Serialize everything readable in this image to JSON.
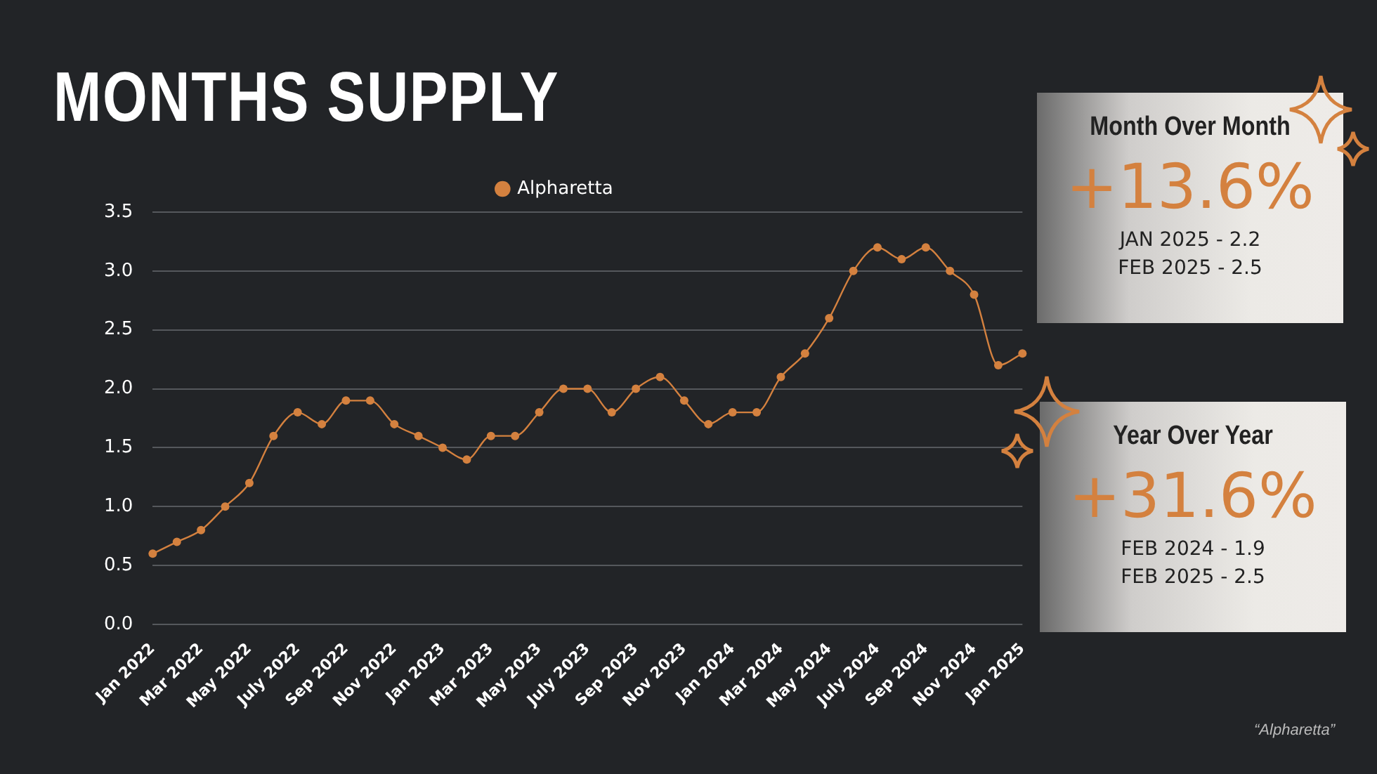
{
  "chart_data": [
    {
      "type": "line",
      "title": "MONTHS SUPPLY",
      "categories": [
        "Jan 2022",
        null,
        "Mar 2022",
        null,
        "May 2022",
        null,
        "July 2022",
        null,
        "Sep 2022",
        null,
        "Nov 2022",
        null,
        "Jan 2023",
        null,
        "Mar 2023",
        null,
        "May 2023",
        null,
        "July 2023",
        null,
        "Sep 2023",
        null,
        "Nov 2023",
        null,
        "Jan 2024",
        null,
        "Mar 2024",
        null,
        "May 2024",
        null,
        "July 2024",
        null,
        "Sep 2024",
        null,
        "Nov 2024",
        null,
        "Jan 2025"
      ],
      "series": [
        {
          "name": "Alpharetta",
          "color": "#d4813f",
          "values": [
            0.6,
            0.7,
            0.8,
            1.0,
            1.2,
            1.6,
            1.8,
            1.7,
            1.9,
            1.9,
            1.7,
            1.6,
            1.5,
            1.4,
            1.6,
            1.6,
            1.8,
            2.0,
            2.0,
            1.8,
            2.0,
            2.1,
            1.9,
            1.7,
            1.8,
            1.8,
            2.1,
            2.3,
            2.6,
            3.0,
            3.2,
            3.1,
            3.2,
            3.0,
            2.8,
            2.2,
            2.3
          ]
        }
      ],
      "ylim": [
        0,
        3.5
      ],
      "yticks": [
        {
          "value": 0,
          "label": "0.0"
        },
        {
          "value": 0.5,
          "label": "0.5"
        },
        {
          "value": 1,
          "label": "1.0"
        },
        {
          "value": 1.5,
          "label": "1.5"
        },
        {
          "value": 2,
          "label": "2.0"
        },
        {
          "value": 2.5,
          "label": "2.5"
        },
        {
          "value": 3,
          "label": "3.0"
        },
        {
          "value": 3.5,
          "label": "3.5"
        }
      ],
      "grid": "y",
      "legend": "top",
      "marker": "circle",
      "annotations": [
        "“Alpharetta”"
      ]
    },
    {
      "type": "other",
      "title": "Month Over Month",
      "annotations": [
        "+13.6%",
        "JAN 2025 - 2.2",
        "FEB 2025 - 2.5"
      ]
    },
    {
      "type": "other",
      "title": "Year Over Year",
      "annotations": [
        "+31.6%",
        "FEB 2024 - 1.9",
        "FEB 2025 - 2.5"
      ]
    }
  ]
}
